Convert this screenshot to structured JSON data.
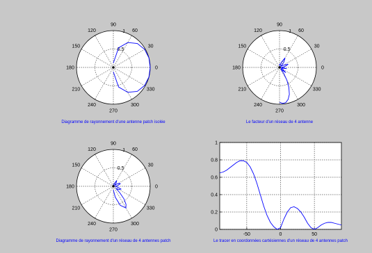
{
  "chart_data": [
    {
      "type": "polar",
      "caption": "Diagramme de rayonnement d'une antenne patch isolée",
      "rlim": [
        0,
        1
      ],
      "r_tick_labels": [
        "0.5",
        "1"
      ],
      "angle_tick_labels": [
        "0",
        "30",
        "60",
        "90",
        "120",
        "150",
        "180",
        "210",
        "240",
        "270",
        "300",
        "330"
      ],
      "grid": true,
      "series": [
        {
          "color": "#0000ff",
          "theta_deg": [
            -90,
            -75,
            -60,
            -45,
            -30,
            -15,
            0,
            15,
            30,
            45,
            60,
            75,
            90
          ],
          "r": [
            0.12,
            0.55,
            0.78,
            0.92,
            0.98,
            1.0,
            1.0,
            1.0,
            0.98,
            0.92,
            0.78,
            0.55,
            0.12
          ]
        }
      ]
    },
    {
      "type": "polar",
      "caption": "Le facteur d'un réseau de 4 antenne",
      "rlim": [
        0,
        1
      ],
      "r_tick_labels": [
        "0.5",
        "1"
      ],
      "angle_tick_labels": [
        "0",
        "30",
        "60",
        "90",
        "120",
        "150",
        "180",
        "210",
        "240",
        "270",
        "300",
        "330"
      ],
      "grid": true,
      "series": [
        {
          "color": "#0000ff",
          "theta_deg": [
            -90,
            -85,
            -80,
            -75,
            -70,
            -65,
            -60,
            -55,
            -50,
            -45,
            -40,
            -30,
            -20,
            -10,
            0,
            10,
            20,
            30,
            40,
            50,
            60,
            70,
            80,
            90
          ],
          "r": [
            0.95,
            0.98,
            0.97,
            0.9,
            0.78,
            0.6,
            0.4,
            0.2,
            0.05,
            0.1,
            0.22,
            0.1,
            0.05,
            0.2,
            0.05,
            0.15,
            0.25,
            0.12,
            0.05,
            0.18,
            0.3,
            0.15,
            0.05,
            0.1
          ]
        }
      ]
    },
    {
      "type": "polar",
      "caption": "Diagramme de rayonnement d'un réseau de 4 antennes patch",
      "rlim": [
        0,
        1
      ],
      "r_tick_labels": [
        "0.5",
        "1"
      ],
      "angle_tick_labels": [
        "0",
        "30",
        "60",
        "90",
        "120",
        "150",
        "180",
        "210",
        "240",
        "270",
        "300",
        "330"
      ],
      "grid": true,
      "series": [
        {
          "color": "#0000ff",
          "theta_deg": [
            -90,
            -80,
            -70,
            -60,
            -55,
            -50,
            -45,
            -40,
            -30,
            -20,
            -10,
            0,
            10,
            20,
            30,
            40,
            50,
            60,
            70,
            80,
            90
          ],
          "r": [
            0.1,
            0.3,
            0.55,
            0.68,
            0.6,
            0.45,
            0.25,
            0.1,
            0.18,
            0.22,
            0.1,
            0.05,
            0.12,
            0.2,
            0.15,
            0.05,
            0.12,
            0.18,
            0.08,
            0.05,
            0.02
          ]
        }
      ]
    },
    {
      "type": "line",
      "caption": "Le tracer en coordonnées cartésiennes d'un réseau de 4 antennes patch",
      "xlim": [
        -90,
        90
      ],
      "ylim": [
        0,
        1
      ],
      "x_tick_values": [
        -50,
        0,
        50
      ],
      "x_tick_labels": [
        "-50",
        "0",
        "50"
      ],
      "y_tick_values": [
        0,
        0.2,
        0.4,
        0.6,
        0.8,
        1
      ],
      "y_tick_labels": [
        "0",
        "0.2",
        "0.4",
        "0.6",
        "0.8",
        "1"
      ],
      "grid": true,
      "series": [
        {
          "color": "#0000ff",
          "x": [
            -90,
            -85,
            -80,
            -75,
            -70,
            -65,
            -60,
            -55,
            -50,
            -45,
            -40,
            -35,
            -30,
            -25,
            -20,
            -15,
            -10,
            -5,
            0,
            5,
            10,
            15,
            20,
            25,
            30,
            35,
            40,
            45,
            50,
            55,
            60,
            65,
            70,
            75,
            80,
            85,
            90
          ],
          "y": [
            0.65,
            0.66,
            0.68,
            0.71,
            0.74,
            0.77,
            0.79,
            0.79,
            0.77,
            0.72,
            0.64,
            0.53,
            0.4,
            0.27,
            0.16,
            0.08,
            0.03,
            0.0,
            0.02,
            0.12,
            0.2,
            0.25,
            0.26,
            0.24,
            0.2,
            0.14,
            0.07,
            0.02,
            0.0,
            0.02,
            0.05,
            0.07,
            0.08,
            0.08,
            0.07,
            0.06,
            0.05
          ]
        }
      ]
    }
  ]
}
